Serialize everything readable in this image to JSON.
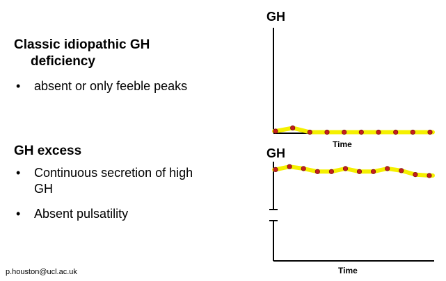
{
  "left": {
    "section1": {
      "heading_line1": "Classic idiopathic GH",
      "heading_line2": "deficiency",
      "bullets": [
        "absent or only feeble peaks"
      ]
    },
    "section2": {
      "heading": "GH excess",
      "bullets": [
        {
          "line1": "Continuous secretion of high",
          "line2": "GH"
        },
        {
          "line1": "Absent pulsatility",
          "line2": ""
        }
      ]
    },
    "bullet_symbol": "•"
  },
  "footer": {
    "email": "p.houston@ucl.ac.uk"
  },
  "colors": {
    "trace": "#f5f000",
    "point": "#c41e1e",
    "axis": "#000000"
  },
  "chart_data": [
    {
      "type": "line",
      "title": "",
      "ylabel": "GH",
      "xlabel": "Time",
      "series": [
        {
          "x": [
            1,
            2,
            3,
            4,
            5,
            6,
            7,
            8,
            9,
            10
          ],
          "y": [
            2,
            5,
            1,
            1,
            1,
            1,
            1,
            1,
            1,
            1
          ]
        }
      ],
      "ylim": [
        0,
        100
      ],
      "grid": false
    },
    {
      "type": "line",
      "title": "",
      "ylabel": "GH",
      "xlabel": "Time",
      "series": [
        {
          "x": [
            1,
            2,
            3,
            4,
            5,
            6,
            7,
            8,
            9,
            10,
            11,
            12
          ],
          "y": [
            92,
            95,
            93,
            90,
            90,
            93,
            90,
            90,
            93,
            91,
            87,
            86
          ]
        }
      ],
      "ylim": [
        0,
        100
      ],
      "axis_break": true,
      "grid": false
    }
  ]
}
